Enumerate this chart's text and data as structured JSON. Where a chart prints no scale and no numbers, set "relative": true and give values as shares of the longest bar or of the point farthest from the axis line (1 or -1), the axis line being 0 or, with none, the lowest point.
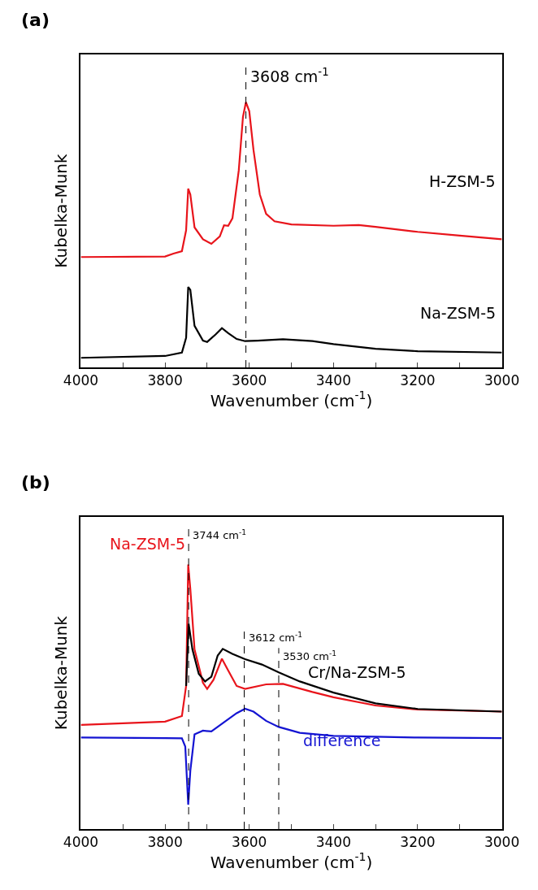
{
  "chart_data": [
    {
      "type": "line",
      "title": "(a)",
      "xlabel": "Wavenumber (cm$^{-1}$)",
      "ylabel": "Kubelka-Munk",
      "relative": true,
      "xlim": [
        4000,
        3000
      ],
      "xticks": [
        4000,
        {
          "value": 3900,
          "label": null
        },
        3800,
        {
          "value": 3700,
          "label": null
        },
        3600,
        {
          "value": 3500,
          "label": null
        },
        3400,
        {
          "value": 3300,
          "label": null
        },
        3200,
        {
          "value": 3100,
          "label": null
        },
        3000
      ],
      "grid": false,
      "legend": false,
      "marker": "none",
      "line_style": "solid",
      "series": [
        {
          "name": "H-ZSM-5",
          "color": "#e8141b",
          "x": [
            4000,
            3800,
            3780,
            3760,
            3750,
            3745,
            3740,
            3730,
            3710,
            3690,
            3670,
            3660,
            3650,
            3640,
            3625,
            3615,
            3608,
            3600,
            3590,
            3575,
            3560,
            3540,
            3500,
            3400,
            3340,
            3300,
            3200,
            3100,
            3000
          ],
          "values": [
            0.416,
            0.418,
            0.429,
            0.438,
            0.517,
            0.674,
            0.652,
            0.528,
            0.483,
            0.466,
            0.494,
            0.536,
            0.534,
            0.562,
            0.742,
            0.944,
            1,
            0.966,
            0.82,
            0.652,
            0.579,
            0.551,
            0.539,
            0.534,
            0.537,
            0.53,
            0.511,
            0.497,
            0.483
          ]
        },
        {
          "name": "Na-ZSM-5",
          "color": "#000000",
          "x": [
            4000,
            3800,
            3760,
            3750,
            3745,
            3740,
            3730,
            3710,
            3700,
            3680,
            3665,
            3650,
            3630,
            3610,
            3580,
            3520,
            3450,
            3400,
            3300,
            3200,
            3000
          ],
          "values": [
            0.036,
            0.043,
            0.056,
            0.112,
            0.303,
            0.292,
            0.157,
            0.101,
            0.096,
            0.124,
            0.148,
            0.129,
            0.107,
            0.099,
            0.101,
            0.106,
            0.099,
            0.088,
            0.07,
            0.061,
            0.056
          ]
        }
      ],
      "ref_lines": [
        {
          "axis": "x",
          "value": 3608,
          "label": "3608 cm$^{-1}$",
          "color": "#000000",
          "line_style": "dashed"
        }
      ]
    },
    {
      "type": "line",
      "title": "(b)",
      "xlabel": "Wavenumber (cm$^{-1}$)",
      "ylabel": "Kubelka-Munk",
      "relative": true,
      "xlim": [
        4000,
        3000
      ],
      "xticks": [
        4000,
        {
          "value": 3900,
          "label": null
        },
        3800,
        {
          "value": 3700,
          "label": null
        },
        3600,
        {
          "value": 3500,
          "label": null
        },
        3400,
        {
          "value": 3300,
          "label": null
        },
        3200,
        {
          "value": 3100,
          "label": null
        },
        3000
      ],
      "grid": false,
      "legend": false,
      "marker": "none",
      "line_style": "solid",
      "series": [
        {
          "name": "Na-ZSM-5",
          "color": "#e8141b",
          "x": [
            4000,
            3800,
            3760,
            3750,
            3745,
            3740,
            3730,
            3710,
            3700,
            3685,
            3665,
            3650,
            3630,
            3610,
            3560,
            3520,
            3450,
            3400,
            3300,
            3200,
            3000
          ],
          "values": [
            0.394,
            0.406,
            0.427,
            0.541,
            1,
            0.908,
            0.679,
            0.553,
            0.53,
            0.564,
            0.644,
            0.599,
            0.541,
            0.53,
            0.547,
            0.549,
            0.518,
            0.498,
            0.467,
            0.452,
            0.444
          ]
        },
        {
          "name": "Cr/Na-ZSM-5",
          "color": "#000000",
          "x": [
            3750,
            3744,
            3735,
            3720,
            3705,
            3690,
            3675,
            3663,
            3640,
            3610,
            3570,
            3530,
            3480,
            3400,
            3300,
            3200,
            3000
          ],
          "values": [
            0.541,
            0.776,
            0.679,
            0.587,
            0.558,
            0.576,
            0.656,
            0.681,
            0.662,
            0.642,
            0.622,
            0.592,
            0.558,
            0.516,
            0.475,
            0.454,
            0.444
          ]
        },
        {
          "name": "difference",
          "color": "#1414d2",
          "x": [
            4000,
            3800,
            3760,
            3752,
            3745,
            3740,
            3730,
            3710,
            3690,
            3680,
            3660,
            3630,
            3610,
            3590,
            3560,
            3530,
            3480,
            3400,
            3200,
            3000
          ],
          "values": [
            0.346,
            0.344,
            0.343,
            0.312,
            0.092,
            0.22,
            0.358,
            0.372,
            0.369,
            0.381,
            0.404,
            0.438,
            0.455,
            0.444,
            0.409,
            0.386,
            0.364,
            0.352,
            0.346,
            0.344
          ]
        }
      ],
      "ref_lines": [
        {
          "axis": "x",
          "value": 3744,
          "label": "3744 cm$^{-1}$",
          "color": "#000000",
          "line_style": "dashed"
        },
        {
          "axis": "x",
          "value": 3612,
          "label": "3612 cm$^{-1}$",
          "color": "#000000",
          "line_style": "dashed"
        },
        {
          "axis": "x",
          "value": 3530,
          "label": "3530 cm$^{-1}$",
          "color": "#000000",
          "line_style": "dashed"
        }
      ]
    }
  ]
}
